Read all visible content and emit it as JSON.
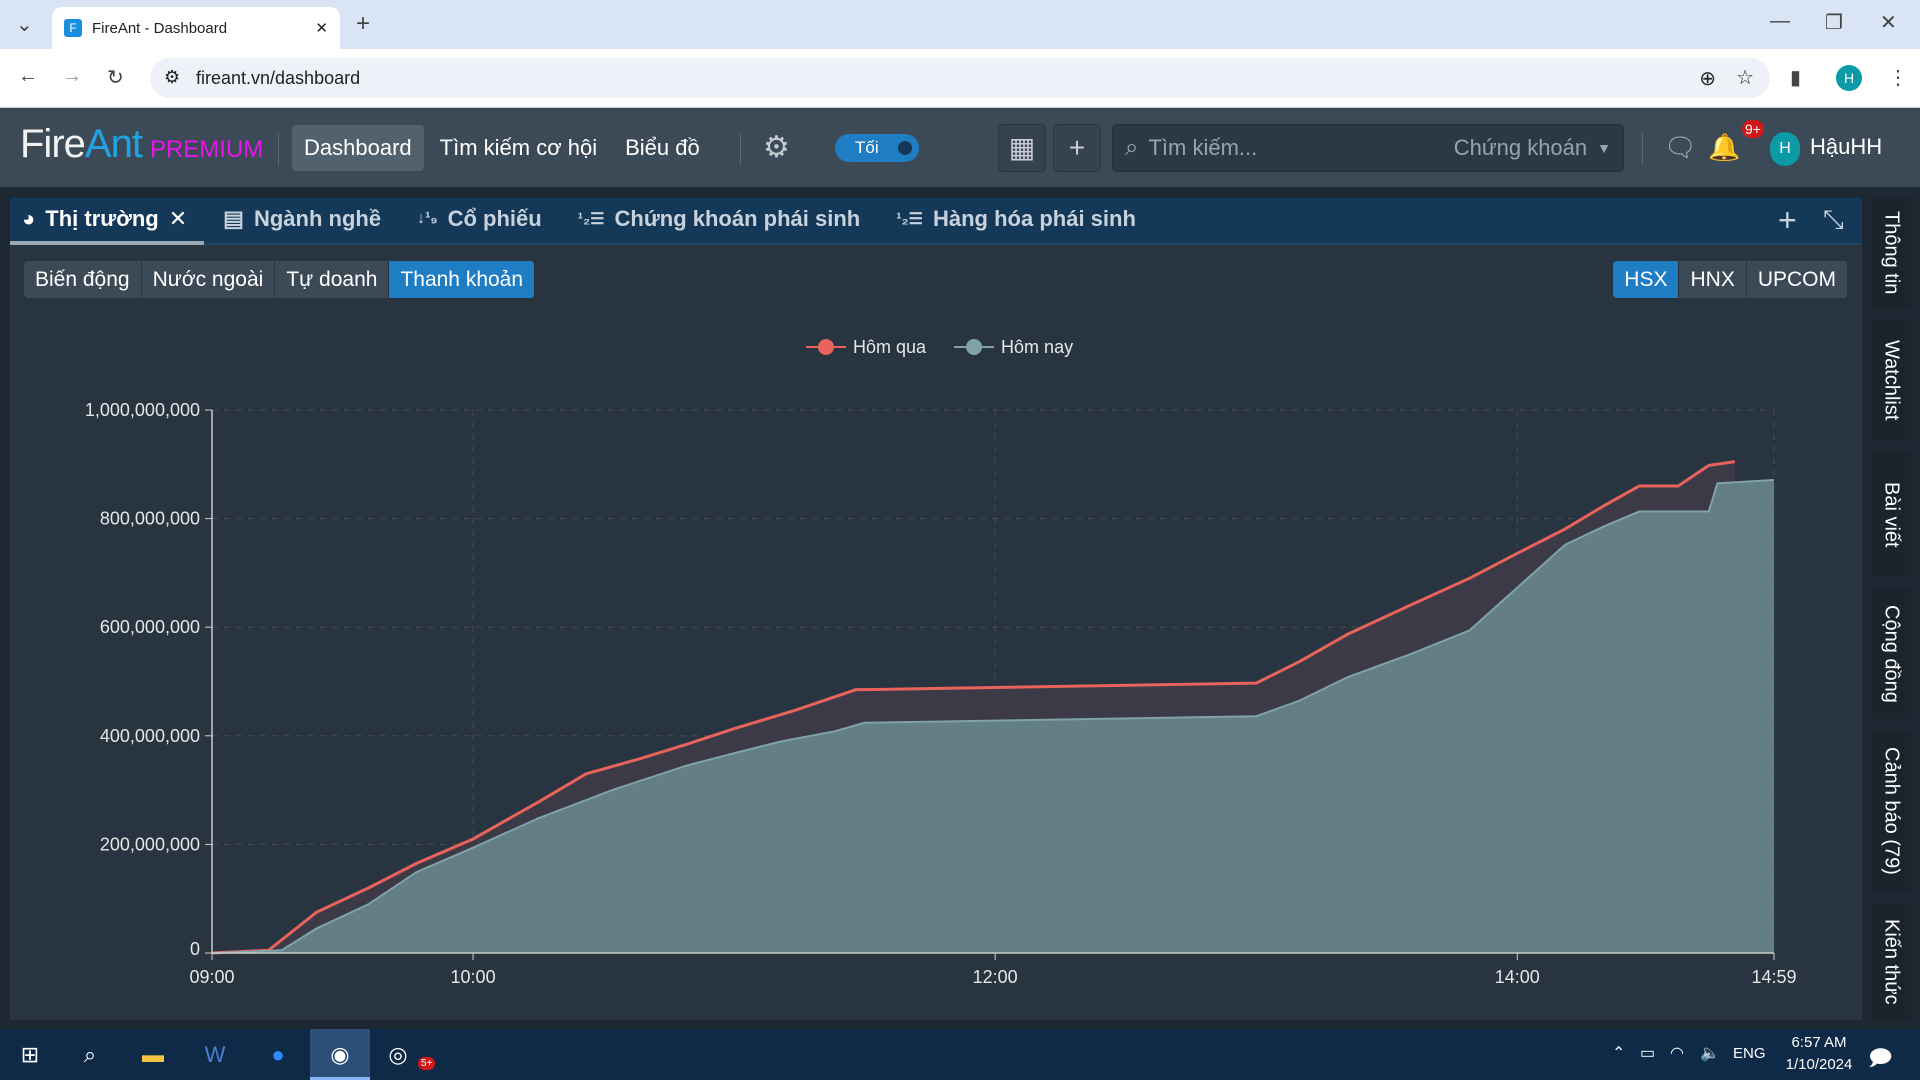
{
  "browser": {
    "tab_title": "FireAnt - Dashboard",
    "url": "fireant.vn/dashboard",
    "profile_initial": "H"
  },
  "app": {
    "logo_fire": "Fire",
    "logo_ant": "Ant",
    "logo_premium": "PREMIUM",
    "nav": [
      "Dashboard",
      "Tìm kiếm cơ hội",
      "Biểu đồ"
    ],
    "theme_toggle": "Tối",
    "search_placeholder": "Tìm kiếm...",
    "search_scope": "Chứng khoán",
    "notification_badge": "9+",
    "user_initial": "H",
    "user_name": "HậuHH"
  },
  "panel": {
    "tabs": [
      "Thị trường",
      "Ngành nghề",
      "Cổ phiếu",
      "Chứng khoán phái sinh",
      "Hàng hóa phái sinh"
    ],
    "subtabs": [
      "Biến động",
      "Nước ngoài",
      "Tự doanh",
      "Thanh khoản"
    ],
    "active_subtab": "Thanh khoản",
    "exchanges": [
      "HSX",
      "HNX",
      "UPCOM"
    ],
    "active_exchange": "HSX"
  },
  "right_sidebar": [
    "Thông tin",
    "Watchlist",
    "Bài viết",
    "Cộng đồng",
    "Cảnh báo (79)",
    "Kiến thức"
  ],
  "taskbar": {
    "time": "6:57 AM",
    "date": "1/10/2024",
    "lang": "ENG",
    "badge": "5+"
  },
  "chart_data": {
    "type": "area",
    "legend_placement": "top-center",
    "grid": true,
    "x_ticks": [
      "09:00",
      "10:00",
      "12:00",
      "14:00",
      "14:59"
    ],
    "y_ticks": [
      "0",
      "200,000,000",
      "400,000,000",
      "600,000,000",
      "800,000,000",
      "1,000,000,000"
    ],
    "ylim": [
      0,
      1000000000
    ],
    "xlim": [
      "09:00",
      "14:59"
    ],
    "series": [
      {
        "name": "Hôm qua",
        "color": "#e8635c",
        "fill": "#3d3a47",
        "points": [
          [
            "09:00",
            0
          ],
          [
            "09:13",
            5000000
          ],
          [
            "09:24",
            75000000
          ],
          [
            "09:36",
            120000000
          ],
          [
            "09:47",
            165000000
          ],
          [
            "10:00",
            210000000
          ],
          [
            "10:15",
            278000000
          ],
          [
            "10:26",
            330000000
          ],
          [
            "10:38",
            357000000
          ],
          [
            "10:49",
            384000000
          ],
          [
            "11:00",
            413000000
          ],
          [
            "11:14",
            447000000
          ],
          [
            "11:28",
            485000000
          ],
          [
            "11:30",
            485000000
          ],
          [
            "13:00",
            497000000
          ],
          [
            "13:10",
            537000000
          ],
          [
            "13:21",
            587000000
          ],
          [
            "13:35",
            639000000
          ],
          [
            "13:49",
            690000000
          ],
          [
            "14:00",
            736000000
          ],
          [
            "14:11",
            781000000
          ],
          [
            "14:20",
            824000000
          ],
          [
            "14:28",
            860000000
          ],
          [
            "14:37",
            860000000
          ],
          [
            "14:44",
            898000000
          ],
          [
            "14:50",
            905000000
          ]
        ]
      },
      {
        "name": "Hôm nay",
        "color": "#7fa3a8",
        "fill": "#637e84",
        "points": [
          [
            "09:00",
            0
          ],
          [
            "09:16",
            5000000
          ],
          [
            "09:24",
            45000000
          ],
          [
            "09:36",
            90000000
          ],
          [
            "09:47",
            149000000
          ],
          [
            "10:00",
            194000000
          ],
          [
            "10:15",
            248000000
          ],
          [
            "10:32",
            300000000
          ],
          [
            "10:49",
            345000000
          ],
          [
            "11:00",
            368000000
          ],
          [
            "11:11",
            390000000
          ],
          [
            "11:23",
            408000000
          ],
          [
            "11:30",
            424000000
          ],
          [
            "13:00",
            436000000
          ],
          [
            "13:10",
            465000000
          ],
          [
            "13:21",
            508000000
          ],
          [
            "13:35",
            549000000
          ],
          [
            "13:49",
            594000000
          ],
          [
            "14:00",
            673000000
          ],
          [
            "14:11",
            752000000
          ],
          [
            "14:20",
            786000000
          ],
          [
            "14:28",
            813000000
          ],
          [
            "14:44",
            813000000
          ],
          [
            "14:46",
            865000000
          ],
          [
            "14:59",
            871000000
          ]
        ]
      }
    ]
  }
}
